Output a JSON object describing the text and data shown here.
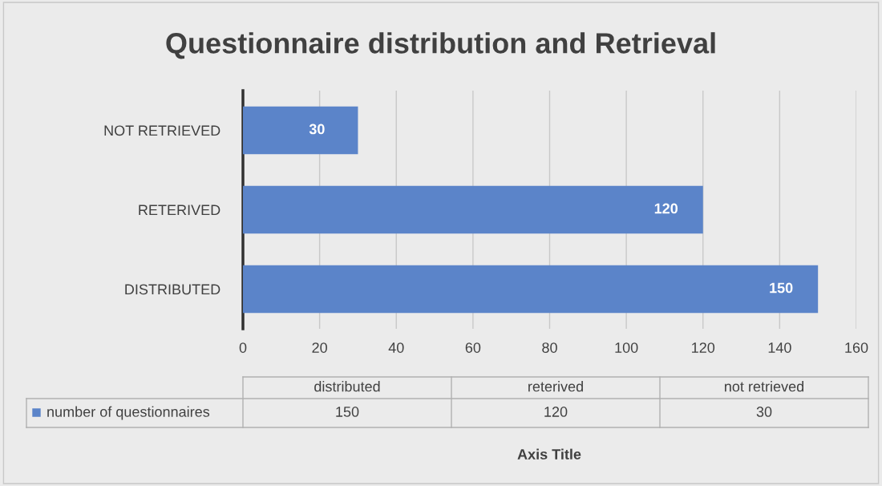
{
  "chart_data": {
    "type": "bar",
    "orientation": "horizontal",
    "title": "Questionnaire distribution and Retrieval",
    "categories": [
      "NOT RETRIEVED",
      "RETERIVED",
      "DISTRIBUTED"
    ],
    "series": [
      {
        "name": "number of questionnaires",
        "color": "#5b84c9",
        "values": [
          30,
          120,
          150
        ]
      }
    ],
    "xlim": [
      0,
      160
    ],
    "xticks": [
      0,
      20,
      40,
      60,
      80,
      100,
      120,
      140,
      160
    ],
    "grid": "x",
    "data_labels": true,
    "legend": "bottom",
    "annotations": [
      "distributed",
      "reterived",
      "not retrieved",
      "150",
      "120",
      "30",
      "Axis Title"
    ]
  }
}
